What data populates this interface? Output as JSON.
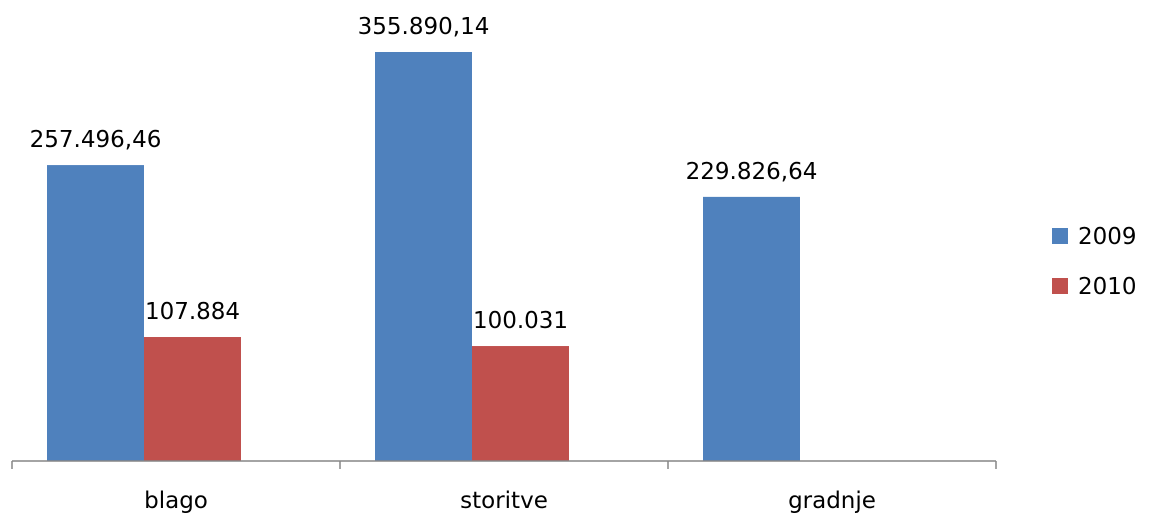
{
  "chart_data": {
    "type": "bar",
    "categories": [
      "blago",
      "storitve",
      "gradnje"
    ],
    "series": [
      {
        "name": "2009",
        "color": "#4F81BD",
        "values": [
          257496.46,
          355890.14,
          229826.64
        ],
        "labels": [
          "257.496,46",
          "355.890,14",
          "229.826,64"
        ]
      },
      {
        "name": "2010",
        "color": "#C0504D",
        "values": [
          107884,
          100031,
          null
        ],
        "labels": [
          "107.884",
          "100.031",
          null
        ]
      }
    ],
    "ylim": [
      0,
      355890.14
    ],
    "grid": false,
    "legend_position": "right"
  }
}
